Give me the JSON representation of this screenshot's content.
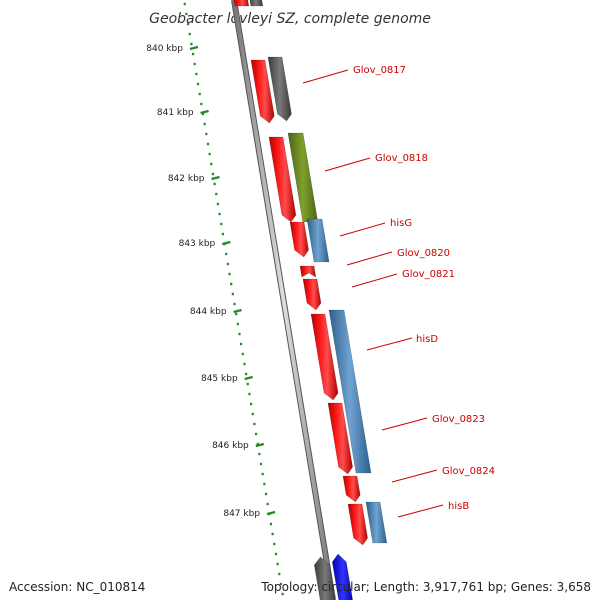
{
  "title": "Geobacter lovleyi SZ, complete genome",
  "footer": {
    "accession": "Accession: NC_010814",
    "summary": "Topology: circular; Length: 3,917,761 bp; Genes: 3,658"
  },
  "scale_ticks": [
    "840 kbp",
    "841 kbp",
    "842 kbp",
    "843 kbp",
    "844 kbp",
    "845 kbp",
    "846 kbp",
    "847 kbp"
  ],
  "gene_labels": [
    "Glov_0817",
    "Glov_0818",
    "hisG",
    "Glov_0820",
    "Glov_0821",
    "hisD",
    "Glov_0823",
    "Glov_0824",
    "hisB"
  ],
  "colors": {
    "cds": "#ff0000",
    "gene_gray": "#666666",
    "gene_green": "#6b8e23",
    "gene_blue": "#4682b4",
    "gene_blue_dark": "#0000ff",
    "backbone": "#999999",
    "ruler": "#228b22",
    "label": "#cc0000"
  }
}
